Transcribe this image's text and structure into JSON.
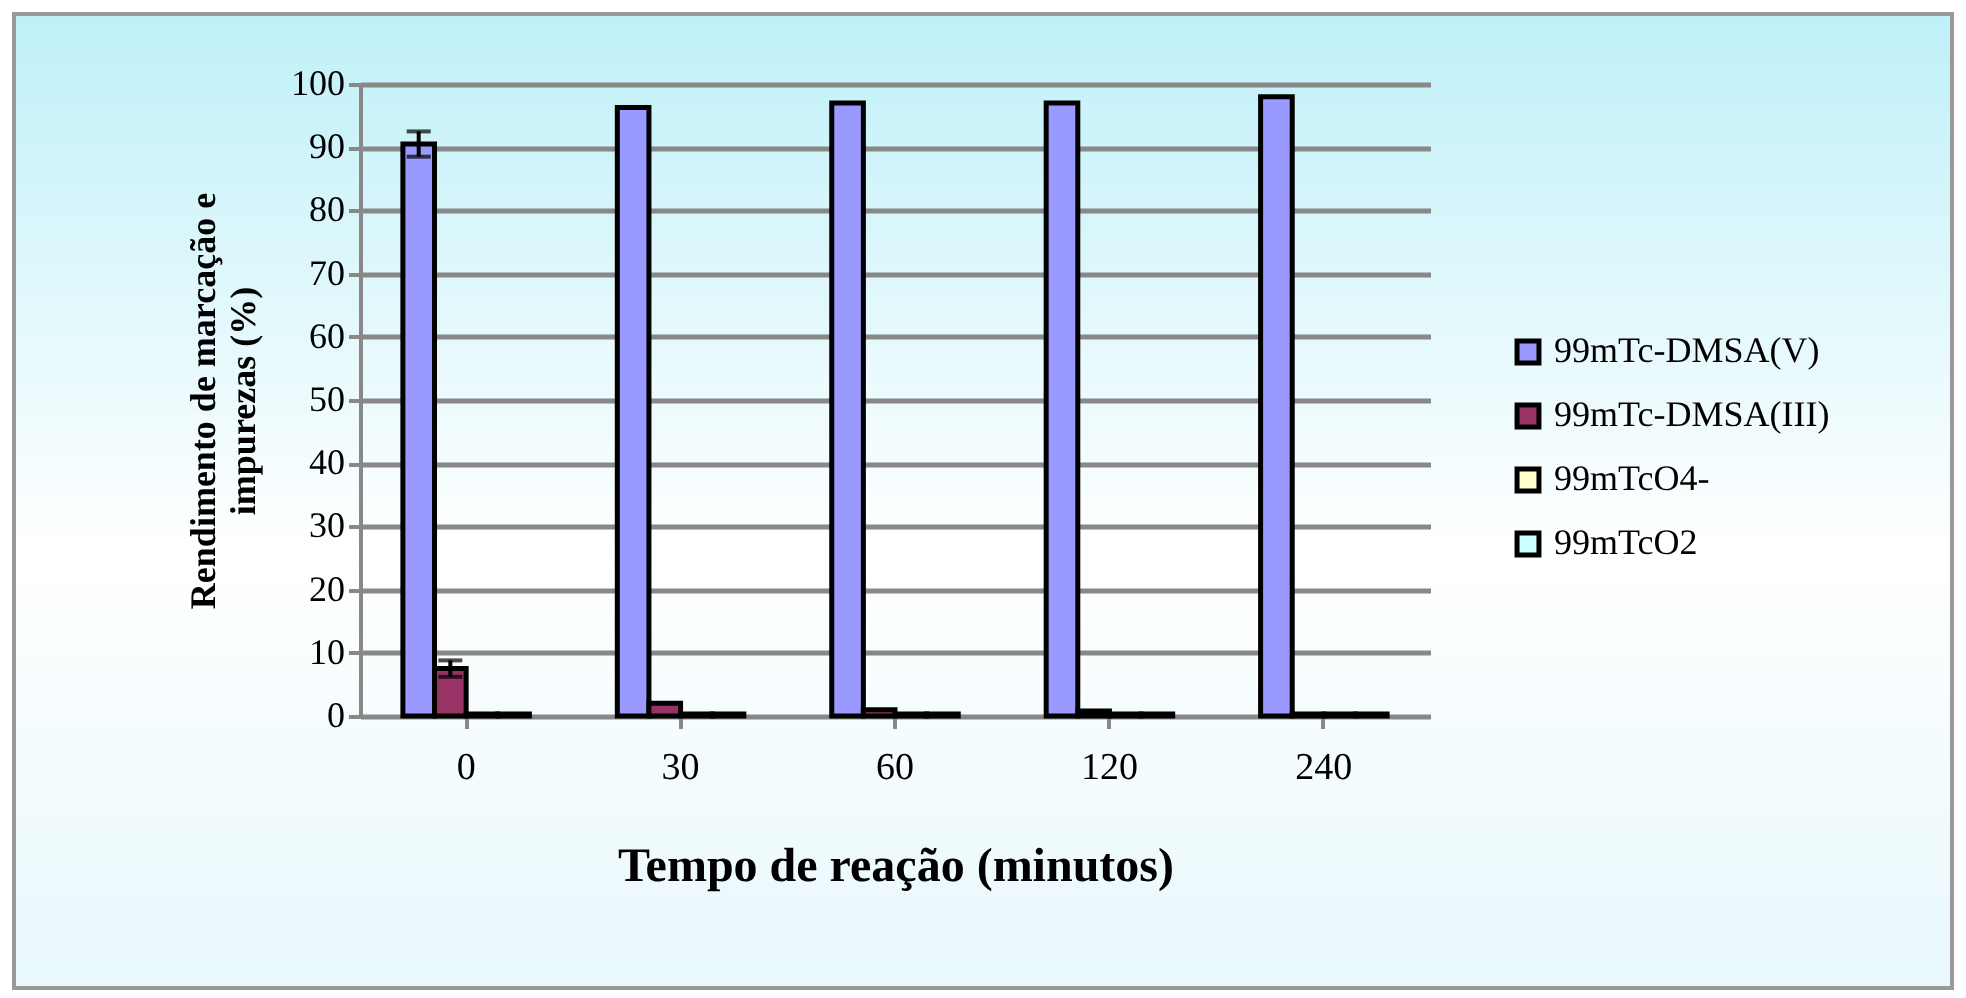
{
  "chart_data": {
    "type": "bar",
    "xlabel": "Tempo de reação (minutos)",
    "ylabel": "Rendimento de marcação e impurezas (%)",
    "categories": [
      "0",
      "30",
      "60",
      "120",
      "240"
    ],
    "series": [
      {
        "name": "99mTc-DMSA(V)",
        "color": "#9999ff",
        "values": [
          90.5,
          96.3,
          97,
          97,
          98
        ],
        "errors": [
          2,
          null,
          null,
          null,
          null
        ]
      },
      {
        "name": "99mTc-DMSA(III)",
        "color": "#993366",
        "values": [
          7.5,
          2,
          1,
          0.8,
          0.3
        ],
        "errors": [
          1.3,
          null,
          null,
          null,
          null
        ]
      },
      {
        "name": "99mTcO4-",
        "color": "#ffffcc",
        "values": [
          0.3,
          0.3,
          0.3,
          0.3,
          0.3
        ]
      },
      {
        "name": "99mTcO2",
        "color": "#ccffff",
        "values": [
          0.3,
          0.3,
          0.3,
          0.3,
          0.3
        ]
      }
    ],
    "ylim": [
      0,
      100
    ],
    "yticks": [
      0,
      10,
      20,
      30,
      40,
      50,
      60,
      70,
      80,
      90,
      100
    ],
    "grid": "y",
    "legend": "right"
  }
}
